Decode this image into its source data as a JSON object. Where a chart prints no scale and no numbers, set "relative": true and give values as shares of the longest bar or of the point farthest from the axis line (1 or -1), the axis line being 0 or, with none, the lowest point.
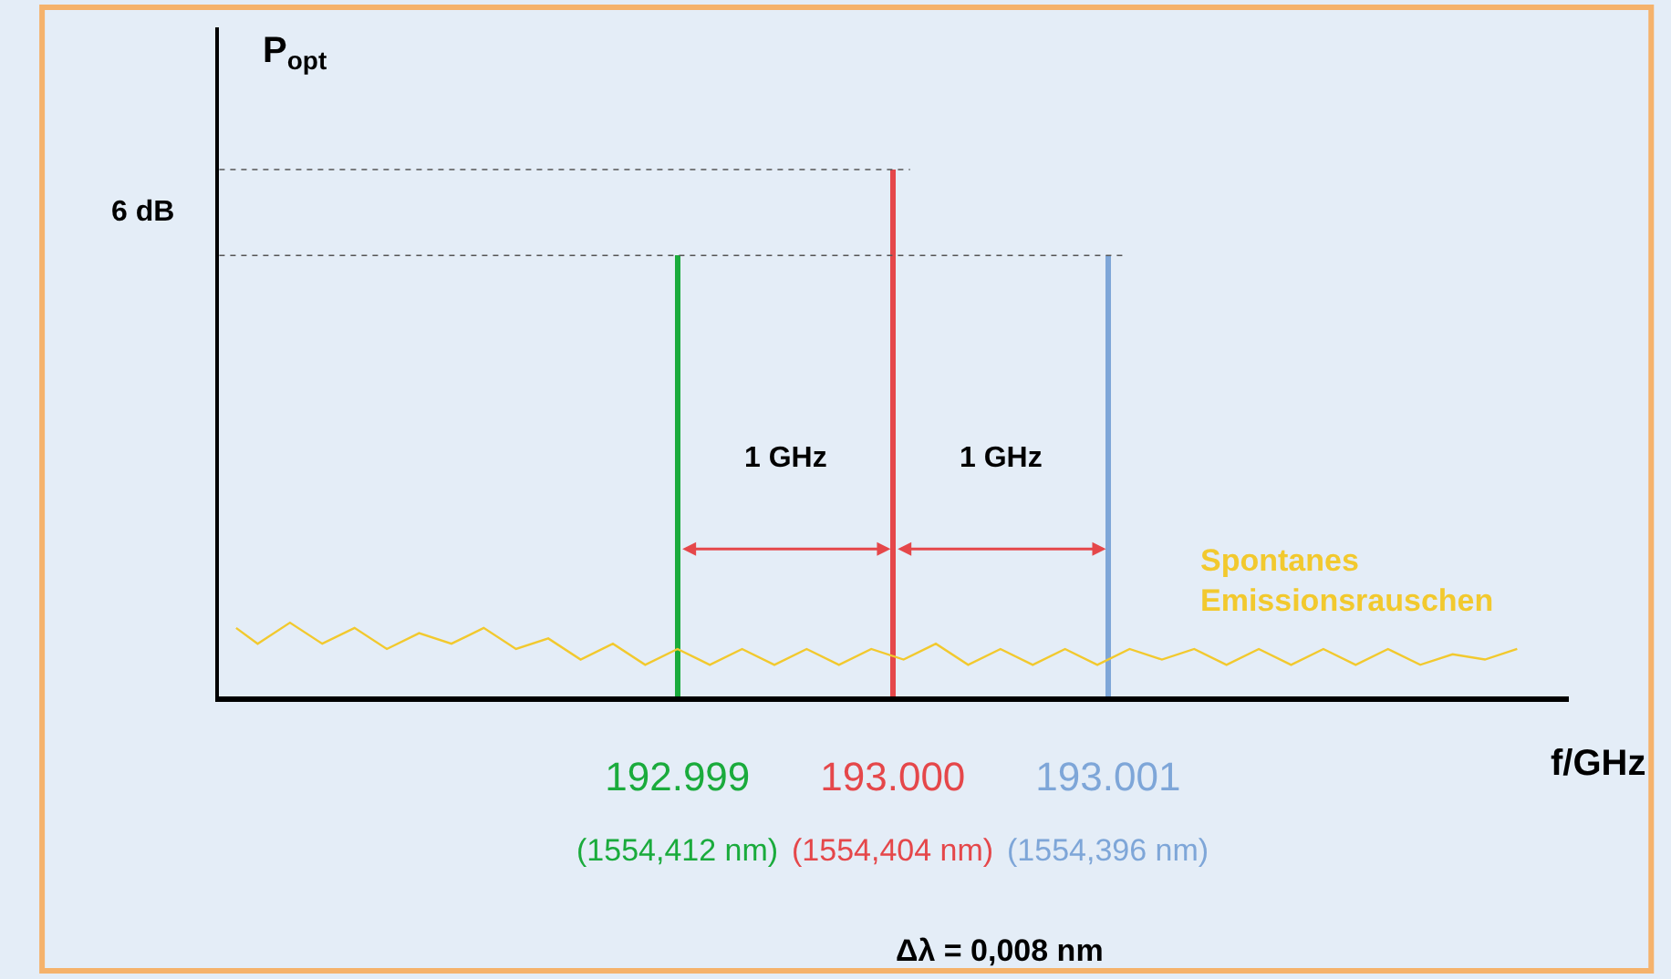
{
  "chart_data": {
    "type": "bar",
    "relative": true,
    "ylabel": "P$_{opt}$",
    "xlabel": "f/GHz",
    "xlim": [
      192.99687,
      193.00314
    ],
    "xticks": [
      {
        "value": 192.999,
        "label": "192.999"
      },
      {
        "value": 193.0,
        "label": "193.000"
      },
      {
        "value": 193.001,
        "label": "193.001"
      }
    ],
    "grid": false,
    "legend": false,
    "series": [
      {
        "x": [
          192.999,
          193.0,
          193.001
        ],
        "values": [
          0.837,
          1,
          0.837
        ],
        "colors": [
          "#1aab3c",
          "#e5474a",
          "#7ea6d8"
        ]
      },
      {
        "type": "line",
        "name": "Spontanes Emissionsrauschen",
        "color": "#f2c92e",
        "x": [
          192.99695,
          192.99705,
          192.9972,
          192.99735,
          192.9975,
          192.99765,
          192.9978,
          192.99795,
          192.9981,
          192.99825,
          192.9984,
          192.99855,
          192.9987,
          192.99885,
          192.999,
          192.99915,
          192.9993,
          192.99945,
          192.9996,
          192.99975,
          192.9999,
          193.00005,
          193.0002,
          193.00035,
          193.0005,
          193.00065,
          193.0008,
          193.00095,
          193.0011,
          193.00125,
          193.0014,
          193.00155,
          193.0017,
          193.00185,
          193.002,
          193.00215,
          193.0023,
          193.00245,
          193.0026,
          193.00275,
          193.0029
        ],
        "values": [
          0.13,
          0.1,
          0.14,
          0.1,
          0.13,
          0.09,
          0.12,
          0.1,
          0.13,
          0.09,
          0.11,
          0.07,
          0.1,
          0.06,
          0.09,
          0.06,
          0.09,
          0.06,
          0.09,
          0.06,
          0.09,
          0.07,
          0.1,
          0.06,
          0.09,
          0.06,
          0.09,
          0.06,
          0.09,
          0.07,
          0.09,
          0.06,
          0.09,
          0.06,
          0.09,
          0.06,
          0.09,
          0.06,
          0.08,
          0.07,
          0.09
        ]
      }
    ],
    "ref_lines": [
      {
        "axis": "y",
        "value": 1,
        "line_style": "dotted",
        "color": "#555555"
      },
      {
        "axis": "y",
        "value": 0.837,
        "line_style": "dotted",
        "color": "#555555"
      }
    ],
    "annotations": [
      "6 dB",
      "1 GHz",
      "1 GHz",
      "(1554,412 nm)",
      "(1554,404 nm)",
      "(1554,396 nm)",
      "Δλ = 0,008 nm"
    ]
  }
}
